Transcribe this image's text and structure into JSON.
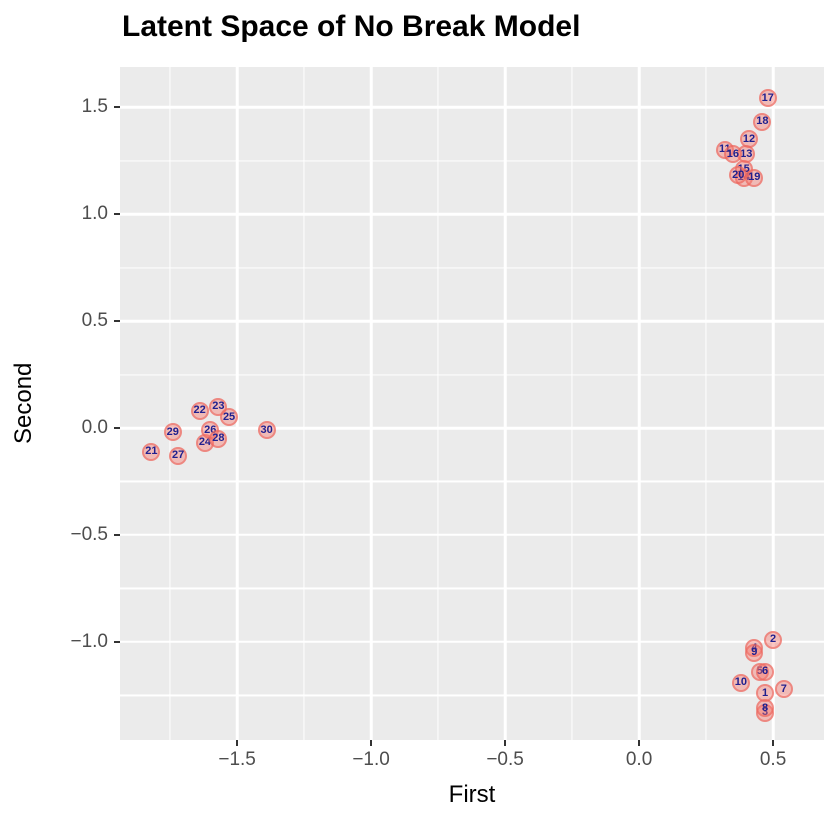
{
  "chart_data": {
    "type": "scatter",
    "title": "Latent Space of No Break Model",
    "xlabel": "First",
    "ylabel": "Second",
    "xlim": [
      -1.937,
      0.69
    ],
    "ylim": [
      -1.458,
      1.687
    ],
    "x_major_ticks": [
      -1.5,
      -1.0,
      -0.5,
      0.0,
      0.5
    ],
    "x_tick_labels": [
      "−1.5",
      "−1.0",
      "−0.5",
      "0.0",
      "0.5"
    ],
    "x_minor_ticks": [
      -1.75,
      -1.25,
      -0.75,
      -0.25,
      0.25
    ],
    "y_major_ticks": [
      1.5,
      1.0,
      0.5,
      0.0,
      -0.5,
      -1.0
    ],
    "y_tick_labels": [
      "1.5",
      "1.0",
      "0.5",
      "0.0",
      "−0.5",
      "−1.0"
    ],
    "y_minor_ticks": [
      1.25,
      0.75,
      0.25,
      -0.25,
      -0.75,
      -1.25
    ],
    "grid": "major+minor",
    "legend": "none",
    "points": [
      {
        "label": "1",
        "x": 0.47,
        "y": -1.24
      },
      {
        "label": "2",
        "x": 0.5,
        "y": -0.99
      },
      {
        "label": "3",
        "x": 0.47,
        "y": -1.33
      },
      {
        "label": "4",
        "x": 0.43,
        "y": -1.03
      },
      {
        "label": "5",
        "x": 0.45,
        "y": -1.14
      },
      {
        "label": "6",
        "x": 0.47,
        "y": -1.14
      },
      {
        "label": "7",
        "x": 0.54,
        "y": -1.22
      },
      {
        "label": "8",
        "x": 0.47,
        "y": -1.31
      },
      {
        "label": "9",
        "x": 0.43,
        "y": -1.05
      },
      {
        "label": "10",
        "x": 0.38,
        "y": -1.19
      },
      {
        "label": "11",
        "x": 0.32,
        "y": 1.3
      },
      {
        "label": "12",
        "x": 0.41,
        "y": 1.35
      },
      {
        "label": "13",
        "x": 0.4,
        "y": 1.28
      },
      {
        "label": "14",
        "x": 0.39,
        "y": 1.17
      },
      {
        "label": "15",
        "x": 0.39,
        "y": 1.21
      },
      {
        "label": "16",
        "x": 0.35,
        "y": 1.28
      },
      {
        "label": "17",
        "x": 0.48,
        "y": 1.54
      },
      {
        "label": "18",
        "x": 0.46,
        "y": 1.43
      },
      {
        "label": "19",
        "x": 0.43,
        "y": 1.17
      },
      {
        "label": "20",
        "x": 0.37,
        "y": 1.18
      },
      {
        "label": "21",
        "x": -1.82,
        "y": -0.11
      },
      {
        "label": "22",
        "x": -1.64,
        "y": 0.08
      },
      {
        "label": "23",
        "x": -1.57,
        "y": 0.1
      },
      {
        "label": "24",
        "x": -1.62,
        "y": -0.07
      },
      {
        "label": "25",
        "x": -1.53,
        "y": 0.05
      },
      {
        "label": "26",
        "x": -1.6,
        "y": -0.01
      },
      {
        "label": "27",
        "x": -1.72,
        "y": -0.13
      },
      {
        "label": "28",
        "x": -1.57,
        "y": -0.05
      },
      {
        "label": "29",
        "x": -1.74,
        "y": -0.02
      },
      {
        "label": "30",
        "x": -1.39,
        "y": -0.01
      }
    ],
    "style": {
      "panel_bg": "#ebebeb",
      "grid_color": "#ffffff",
      "point_fill": "rgba(248,118,109,0.42)",
      "point_ring": "rgba(235,100,92,0.6)",
      "point_label_color": "#20208e",
      "axis_text_color": "#4d4d4d",
      "tick_color": "#333333",
      "title_color": "#000000"
    }
  }
}
